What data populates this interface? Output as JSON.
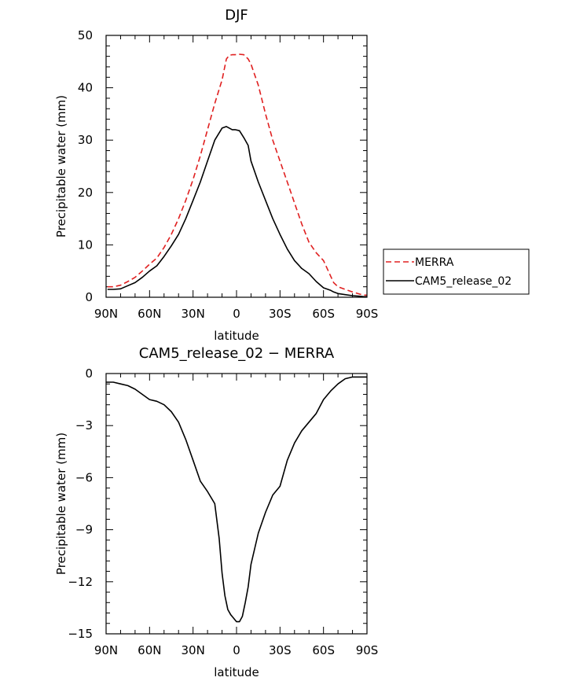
{
  "chart_data": [
    {
      "type": "line",
      "title": "DJF",
      "xlabel": "latitude",
      "ylabel": "Precipitable water (mm)",
      "xlim": [
        -90,
        90
      ],
      "ylim": [
        0,
        50
      ],
      "x_ticks": [
        -90,
        -60,
        -30,
        0,
        30,
        60,
        90
      ],
      "x_tick_labels": [
        "90N",
        "60N",
        "30N",
        "0",
        "30S",
        "60S",
        "90S"
      ],
      "y_ticks": [
        0,
        10,
        20,
        30,
        40,
        50
      ],
      "y_tick_labels": [
        "0",
        "10",
        "20",
        "30",
        "40",
        "50"
      ],
      "legend": {
        "placement": "right"
      },
      "series": [
        {
          "name": "MERRA",
          "color": "#e02020",
          "dash": "dashed",
          "x": [
            -89,
            -85,
            -80,
            -75,
            -70,
            -65,
            -60,
            -55,
            -50,
            -45,
            -40,
            -35,
            -30,
            -25,
            -20,
            -15,
            -10,
            -7,
            -5,
            -3,
            -1,
            2,
            5,
            8,
            10,
            15,
            20,
            25,
            30,
            35,
            40,
            45,
            50,
            55,
            60,
            65,
            67,
            70,
            75,
            80,
            85,
            88,
            90
          ],
          "y": [
            2.0,
            2.0,
            2.3,
            3.0,
            3.8,
            5.0,
            6.3,
            7.5,
            9.5,
            12.0,
            15.0,
            18.5,
            22.5,
            27.0,
            32.0,
            37.0,
            41.5,
            45.5,
            46.2,
            46.3,
            46.3,
            46.4,
            46.3,
            45.5,
            44.5,
            40.5,
            35.0,
            30.0,
            26.0,
            22.0,
            18.0,
            14.0,
            10.5,
            8.5,
            7.0,
            4.0,
            2.8,
            2.0,
            1.5,
            1.0,
            0.6,
            0.4,
            0.4
          ]
        },
        {
          "name": "CAM5_release_02",
          "color": "#000000",
          "dash": "solid",
          "x": [
            -89,
            -85,
            -80,
            -75,
            -70,
            -65,
            -60,
            -55,
            -50,
            -45,
            -40,
            -35,
            -30,
            -25,
            -20,
            -15,
            -10,
            -7,
            -5,
            -3,
            -1,
            2,
            5,
            8,
            10,
            15,
            20,
            25,
            30,
            35,
            40,
            45,
            50,
            55,
            60,
            65,
            67,
            70,
            75,
            80,
            85,
            88,
            90
          ],
          "y": [
            1.5,
            1.5,
            1.6,
            2.2,
            2.8,
            3.8,
            5.0,
            6.0,
            7.8,
            9.8,
            12.0,
            15.0,
            18.5,
            22.0,
            26.0,
            30.0,
            32.3,
            32.6,
            32.3,
            32.0,
            32.0,
            31.8,
            30.5,
            29.0,
            26.0,
            22.0,
            18.5,
            15.0,
            12.0,
            9.2,
            7.0,
            5.5,
            4.5,
            3.0,
            1.8,
            1.3,
            1.0,
            0.7,
            0.5,
            0.3,
            0.2,
            0.1,
            0.1
          ]
        }
      ]
    },
    {
      "type": "line",
      "title": "CAM5_release_02 − MERRA",
      "xlabel": "latitude",
      "ylabel": "Precipitable water (mm)",
      "xlim": [
        -90,
        90
      ],
      "ylim": [
        -15,
        0
      ],
      "x_ticks": [
        -90,
        -60,
        -30,
        0,
        30,
        60,
        90
      ],
      "x_tick_labels": [
        "90N",
        "60N",
        "30N",
        "0",
        "30S",
        "60S",
        "90S"
      ],
      "y_ticks": [
        -15,
        -12,
        -9,
        -6,
        -3,
        0
      ],
      "y_tick_labels": [
        "−15",
        "−12",
        "−9",
        "−6",
        "−3",
        "0"
      ],
      "series": [
        {
          "color": "#000000",
          "dash": "solid",
          "x": [
            -90,
            -85,
            -80,
            -75,
            -70,
            -65,
            -60,
            -55,
            -50,
            -45,
            -40,
            -35,
            -30,
            -25,
            -20,
            -15,
            -12,
            -10,
            -8,
            -6,
            -4,
            -2,
            0,
            2,
            4,
            6,
            8,
            10,
            15,
            20,
            25,
            30,
            35,
            40,
            45,
            50,
            55,
            60,
            65,
            70,
            75,
            80,
            85,
            90
          ],
          "y": [
            -0.5,
            -0.5,
            -0.6,
            -0.7,
            -0.9,
            -1.2,
            -1.5,
            -1.6,
            -1.8,
            -2.2,
            -2.8,
            -3.8,
            -5.0,
            -6.2,
            -6.8,
            -7.5,
            -9.5,
            -11.5,
            -12.8,
            -13.6,
            -13.9,
            -14.1,
            -14.3,
            -14.3,
            -14.0,
            -13.2,
            -12.3,
            -11.0,
            -9.2,
            -8.0,
            -7.0,
            -6.5,
            -5.0,
            -4.0,
            -3.3,
            -2.8,
            -2.3,
            -1.5,
            -1.0,
            -0.6,
            -0.3,
            -0.2,
            -0.2,
            -0.2
          ]
        }
      ]
    }
  ]
}
